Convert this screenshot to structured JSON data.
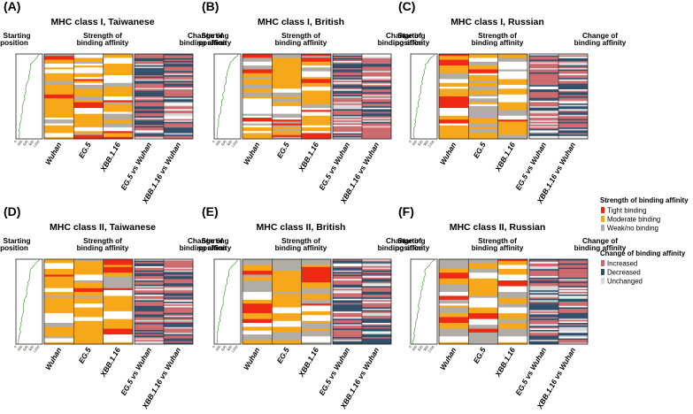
{
  "figure_panels": [
    "(A)",
    "(B)",
    "(C)",
    "(D)",
    "(E)",
    "(F)"
  ],
  "section_headers": {
    "starting_position": [
      "Starting",
      "position"
    ],
    "strength": [
      "Strength of",
      "binding affinity"
    ],
    "change": [
      "Change of",
      "binding affinity"
    ]
  },
  "position_ticks": [
    "0",
    "300",
    "600",
    "900",
    "1200"
  ],
  "column_labels": {
    "strength": [
      "Wuhan",
      "EG.5",
      "XBB.1.16"
    ],
    "change": [
      "EG.5 vs Wuhan",
      "XBB.1.16 vs Wuhan"
    ]
  },
  "colors": {
    "tight": "#ee2a14",
    "moderate": "#f7a81a",
    "weak": "#b1aca5",
    "increased": "#cd6a6f",
    "decreased": "#32506a",
    "unchanged": "#d9d9d9",
    "curve": "#4a9a3e"
  },
  "legend": {
    "strength": {
      "title": "Strength of binding affinity",
      "items": [
        {
          "label": "Tight binding",
          "color": "#ee2a14"
        },
        {
          "label": "Moderate binding",
          "color": "#f7a81a"
        },
        {
          "label": "Weak/no binding",
          "color": "#b1aca5"
        }
      ]
    },
    "change": {
      "title": "Change of binding affinity",
      "items": [
        {
          "label": "Increased",
          "color": "#cd6a6f"
        },
        {
          "label": "Decreased",
          "color": "#32506a"
        },
        {
          "label": "Unchanged",
          "color": "#d9d9d9"
        }
      ]
    }
  },
  "chart_data": [
    {
      "type": "heatmap",
      "panel": "(A)",
      "title": "MHC class I, Taiwanese",
      "mhc_class": "I",
      "population": "Taiwanese",
      "x_position": [
        0,
        1200
      ],
      "strength_columns": [
        "Wuhan",
        "EG.5",
        "XBB.1.16"
      ],
      "change_columns": [
        "EG.5 vs Wuhan",
        "XBB.1.16 vs Wuhan"
      ],
      "categories_strength": [
        "Tight binding",
        "Moderate binding",
        "Weak/no binding"
      ],
      "categories_change": [
        "Increased",
        "Decreased",
        "Unchanged"
      ]
    },
    {
      "type": "heatmap",
      "panel": "(B)",
      "title": "MHC class I, British",
      "mhc_class": "I",
      "population": "British",
      "x_position": [
        0,
        1200
      ],
      "strength_columns": [
        "Wuhan",
        "EG.5",
        "XBB.1.16"
      ],
      "change_columns": [
        "EG.5 vs Wuhan",
        "XBB.1.16 vs Wuhan"
      ],
      "categories_strength": [
        "Tight binding",
        "Moderate binding",
        "Weak/no binding"
      ],
      "categories_change": [
        "Increased",
        "Decreased",
        "Unchanged"
      ]
    },
    {
      "type": "heatmap",
      "panel": "(C)",
      "title": "MHC class I, Russian",
      "mhc_class": "I",
      "population": "Russian",
      "x_position": [
        0,
        1200
      ],
      "strength_columns": [
        "Wuhan",
        "EG.5",
        "XBB.1.16"
      ],
      "change_columns": [
        "EG.5 vs Wuhan",
        "XBB.1.16 vs Wuhan"
      ],
      "categories_strength": [
        "Tight binding",
        "Moderate binding",
        "Weak/no binding"
      ],
      "categories_change": [
        "Increased",
        "Decreased",
        "Unchanged"
      ]
    },
    {
      "type": "heatmap",
      "panel": "(D)",
      "title": "MHC class II, Taiwanese",
      "mhc_class": "II",
      "population": "Taiwanese",
      "x_position": [
        0,
        1200
      ],
      "strength_columns": [
        "Wuhan",
        "EG.5",
        "XBB.1.16"
      ],
      "change_columns": [
        "EG.5 vs Wuhan",
        "XBB.1.16 vs Wuhan"
      ],
      "categories_strength": [
        "Tight binding",
        "Moderate binding",
        "Weak/no binding"
      ],
      "categories_change": [
        "Increased",
        "Decreased",
        "Unchanged"
      ]
    },
    {
      "type": "heatmap",
      "panel": "(E)",
      "title": "MHC class II, British",
      "mhc_class": "II",
      "population": "British",
      "x_position": [
        0,
        1200
      ],
      "strength_columns": [
        "Wuhan",
        "EG.5",
        "XBB.1.16"
      ],
      "change_columns": [
        "EG.5 vs Wuhan",
        "XBB.1.16 vs Wuhan"
      ],
      "categories_strength": [
        "Tight binding",
        "Moderate binding",
        "Weak/no binding"
      ],
      "categories_change": [
        "Increased",
        "Decreased",
        "Unchanged"
      ]
    },
    {
      "type": "heatmap",
      "panel": "(F)",
      "title": "MHC class II, Russian",
      "mhc_class": "II",
      "population": "Russian",
      "x_position": [
        0,
        1200
      ],
      "strength_columns": [
        "Wuhan",
        "EG.5",
        "XBB.1.16"
      ],
      "change_columns": [
        "EG.5 vs Wuhan",
        "XBB.1.16 vs Wuhan"
      ],
      "categories_strength": [
        "Tight binding",
        "Moderate binding",
        "Weak/no binding"
      ],
      "categories_change": [
        "Increased",
        "Decreased",
        "Unchanged"
      ]
    }
  ]
}
